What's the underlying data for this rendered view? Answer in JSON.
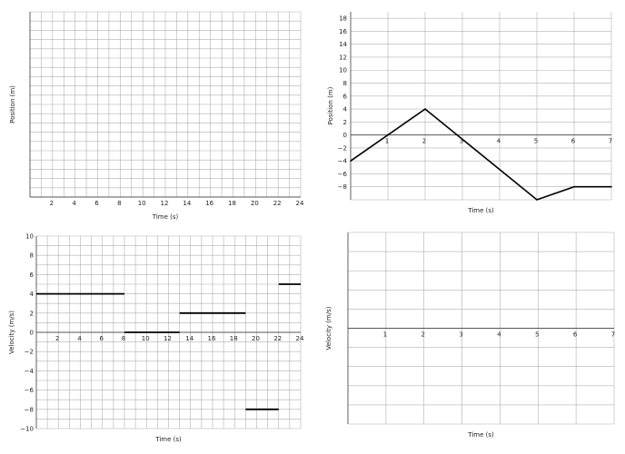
{
  "chart_data": [
    {
      "id": "top-left",
      "type": "line",
      "xlabel": "Time (s)",
      "ylabel": "Position (m)",
      "xlim": [
        0,
        24
      ],
      "ylim": [
        0,
        20
      ],
      "x_ticks": [
        2,
        4,
        6,
        8,
        10,
        12,
        14,
        16,
        18,
        20,
        22,
        24
      ],
      "y_ticks": [],
      "x_grid_step": 1,
      "y_grid_step": 1,
      "grid": true,
      "series": []
    },
    {
      "id": "top-right",
      "type": "line",
      "xlabel": "Time (s)",
      "ylabel": "Position (m)",
      "xlim": [
        0,
        7
      ],
      "ylim": [
        -10,
        19
      ],
      "x_ticks": [
        1,
        2,
        3,
        4,
        5,
        6,
        7
      ],
      "y_ticks": [
        -8,
        -6,
        -4,
        -2,
        0,
        2,
        4,
        6,
        8,
        10,
        12,
        14,
        16,
        18
      ],
      "x_grid_step": 1,
      "y_grid_step": 2,
      "grid": true,
      "series": [
        {
          "x": [
            0,
            2,
            5,
            6,
            7
          ],
          "y": [
            -4,
            4,
            -10,
            -8,
            -8
          ]
        }
      ]
    },
    {
      "id": "bottom-left",
      "type": "line",
      "xlabel": "Time (s)",
      "ylabel": "Velocity (m/s)",
      "xlim": [
        0,
        24
      ],
      "ylim": [
        -10,
        10
      ],
      "x_ticks": [
        2,
        4,
        6,
        8,
        10,
        12,
        14,
        16,
        18,
        20,
        22,
        24
      ],
      "y_ticks": [
        -10,
        -8,
        -6,
        -4,
        -2,
        0,
        2,
        4,
        6,
        8,
        10
      ],
      "x_grid_step": 1,
      "y_grid_step": 1,
      "grid": true,
      "segments": [
        {
          "x": [
            0,
            8
          ],
          "y": 4
        },
        {
          "x": [
            8,
            13
          ],
          "y": 0
        },
        {
          "x": [
            13,
            19
          ],
          "y": 2
        },
        {
          "x": [
            19,
            22
          ],
          "y": -8
        },
        {
          "x": [
            22,
            24
          ],
          "y": 5
        }
      ]
    },
    {
      "id": "bottom-right",
      "type": "line",
      "xlabel": "Time (s)",
      "ylabel": "Velocity (m/s)",
      "xlim": [
        0,
        7
      ],
      "ylim": [
        -10,
        10
      ],
      "x_ticks": [
        1,
        2,
        3,
        4,
        5,
        6,
        7
      ],
      "y_ticks": [],
      "x_grid_step": 1,
      "y_grid_step": 2,
      "grid": true,
      "series": []
    }
  ]
}
